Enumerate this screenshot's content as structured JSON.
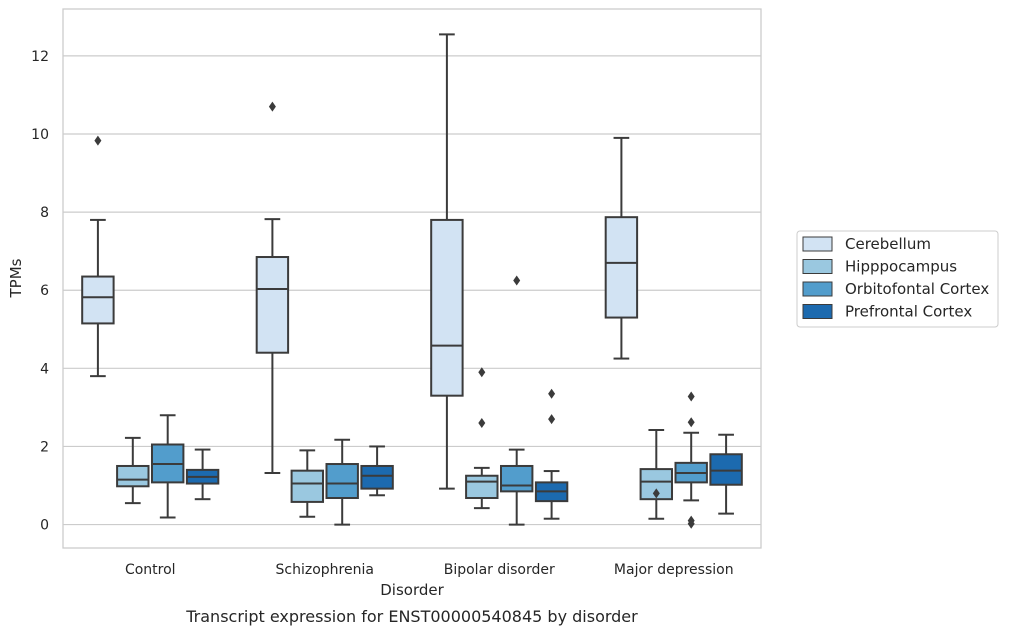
{
  "chart_data": {
    "type": "box",
    "title": "",
    "caption": "Transcript expression for ENST00000540845 by disorder",
    "xlabel": "Disorder",
    "ylabel": "TPMs",
    "ylim": [
      -0.6,
      13.2
    ],
    "yticks": [
      0,
      2,
      4,
      6,
      8,
      10,
      12
    ],
    "grid": true,
    "legend_position": "right",
    "categories": [
      "Control",
      "Schizophrenia",
      "Bipolar disorder",
      "Major depression"
    ],
    "series": [
      {
        "name": "Cerebellum",
        "color": "#d2e3f3",
        "boxes": [
          {
            "whislo": 3.8,
            "q1": 5.15,
            "med": 5.82,
            "q3": 6.35,
            "whishi": 7.8,
            "fliers": [
              9.83
            ]
          },
          {
            "whislo": 1.32,
            "q1": 4.4,
            "med": 6.03,
            "q3": 6.85,
            "whishi": 7.82,
            "fliers": [
              10.7
            ]
          },
          {
            "whislo": 0.92,
            "q1": 3.3,
            "med": 4.58,
            "q3": 7.8,
            "whishi": 12.55,
            "fliers": []
          },
          {
            "whislo": 4.25,
            "q1": 5.3,
            "med": 6.7,
            "q3": 7.87,
            "whishi": 9.9,
            "fliers": []
          }
        ]
      },
      {
        "name": "Hipppocampus",
        "color": "#9ac8e0",
        "boxes": [
          {
            "whislo": 0.55,
            "q1": 0.98,
            "med": 1.15,
            "q3": 1.5,
            "whishi": 2.22,
            "fliers": []
          },
          {
            "whislo": 0.2,
            "q1": 0.58,
            "med": 1.05,
            "q3": 1.38,
            "whishi": 1.9,
            "fliers": []
          },
          {
            "whislo": 0.42,
            "q1": 0.68,
            "med": 1.1,
            "q3": 1.25,
            "whishi": 1.45,
            "fliers": [
              2.6,
              3.9
            ]
          },
          {
            "whislo": 0.15,
            "q1": 0.65,
            "med": 1.1,
            "q3": 1.42,
            "whishi": 2.42,
            "fliers": [
              0.8
            ]
          }
        ]
      },
      {
        "name": "Orbitofontal Cortex",
        "color": "#529dcc",
        "boxes": [
          {
            "whislo": 0.18,
            "q1": 1.08,
            "med": 1.55,
            "q3": 2.05,
            "whishi": 2.8,
            "fliers": []
          },
          {
            "whislo": 0.0,
            "q1": 0.68,
            "med": 1.05,
            "q3": 1.55,
            "whishi": 2.17,
            "fliers": []
          },
          {
            "whislo": 0.0,
            "q1": 0.85,
            "med": 1.0,
            "q3": 1.5,
            "whishi": 1.92,
            "fliers": [
              6.25
            ]
          },
          {
            "whislo": 0.62,
            "q1": 1.08,
            "med": 1.32,
            "q3": 1.58,
            "whishi": 2.35,
            "fliers": [
              0.02,
              0.1,
              2.62,
              3.28
            ]
          }
        ]
      },
      {
        "name": "Prefrontal Cortex",
        "color": "#1c6aaf",
        "boxes": [
          {
            "whislo": 0.65,
            "q1": 1.05,
            "med": 1.22,
            "q3": 1.4,
            "whishi": 1.92,
            "fliers": []
          },
          {
            "whislo": 0.75,
            "q1": 0.92,
            "med": 1.25,
            "q3": 1.5,
            "whishi": 2.0,
            "fliers": []
          },
          {
            "whislo": 0.15,
            "q1": 0.6,
            "med": 0.85,
            "q3": 1.08,
            "whishi": 1.37,
            "fliers": [
              2.7,
              3.35
            ]
          },
          {
            "whislo": 0.28,
            "q1": 1.02,
            "med": 1.38,
            "q3": 1.8,
            "whishi": 2.3,
            "fliers": []
          }
        ]
      }
    ]
  }
}
